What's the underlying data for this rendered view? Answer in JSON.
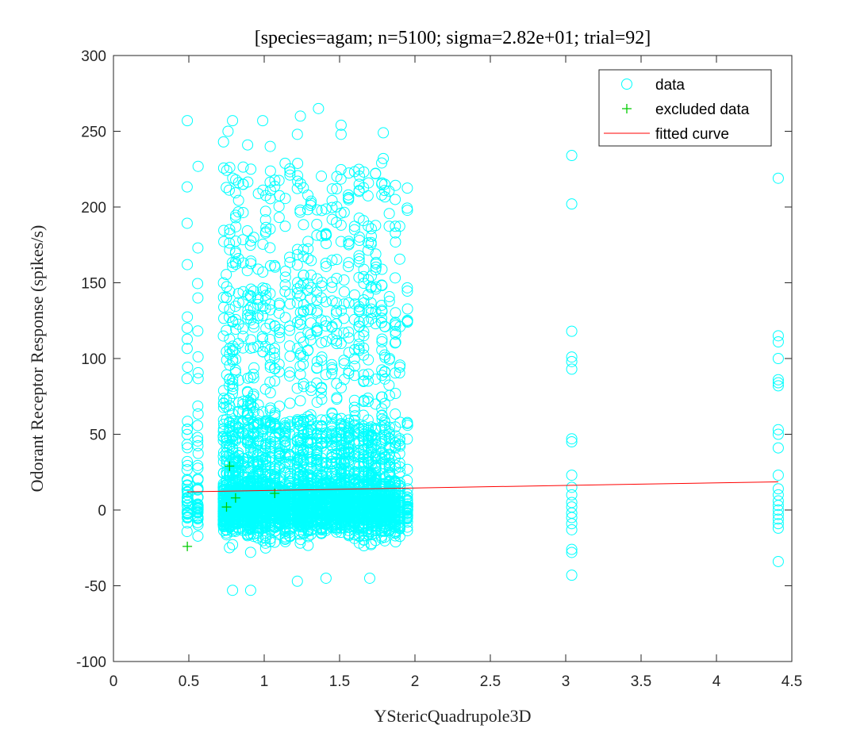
{
  "chart_data": {
    "type": "scatter",
    "title": "[species=agam; n=5100; sigma=2.82e+01; trial=92]",
    "xlabel": "YStericQuadrupole3D",
    "ylabel": "Odorant Receptor Response (spikes/s)",
    "xlim": [
      0,
      4.5
    ],
    "ylim": [
      -100,
      300
    ],
    "xticks": [
      0,
      0.5,
      1,
      1.5,
      2,
      2.5,
      3,
      3.5,
      4,
      4.5
    ],
    "xtick_labels": [
      "0",
      "0.5",
      "1",
      "1.5",
      "2",
      "2.5",
      "3",
      "3.5",
      "4",
      "4.5"
    ],
    "yticks": [
      -100,
      -50,
      0,
      50,
      100,
      150,
      200,
      250,
      300
    ],
    "ytick_labels": [
      "-100",
      "-50",
      "0",
      "50",
      "100",
      "150",
      "200",
      "250",
      "300"
    ],
    "grid": false,
    "legend_position": "top-right",
    "series": [
      {
        "name": "data",
        "marker": "circle",
        "color": "#00ffff",
        "x_clusters": [
          0.49,
          0.56,
          0.73,
          0.75,
          0.77,
          0.79,
          0.81,
          0.83,
          0.86,
          0.89,
          0.91,
          0.93,
          0.96,
          0.99,
          1.01,
          1.04,
          1.07,
          1.1,
          1.14,
          1.17,
          1.22,
          1.24,
          1.26,
          1.29,
          1.31,
          1.35,
          1.38,
          1.41,
          1.45,
          1.48,
          1.51,
          1.53,
          1.56,
          1.6,
          1.63,
          1.66,
          1.69,
          1.71,
          1.74,
          1.78,
          1.8,
          1.83,
          1.87,
          1.9,
          1.95,
          3.04,
          4.41
        ],
        "notable_points": [
          {
            "x": 0.49,
            "y": 257
          },
          {
            "x": 0.49,
            "y": 162
          },
          {
            "x": 0.56,
            "y": 173
          },
          {
            "x": 0.56,
            "y": 140
          },
          {
            "x": 0.73,
            "y": 243
          },
          {
            "x": 0.76,
            "y": 250
          },
          {
            "x": 0.79,
            "y": 257
          },
          {
            "x": 0.89,
            "y": 241
          },
          {
            "x": 0.99,
            "y": 257
          },
          {
            "x": 1.04,
            "y": 240
          },
          {
            "x": 1.22,
            "y": 248
          },
          {
            "x": 1.24,
            "y": 260
          },
          {
            "x": 1.36,
            "y": 265
          },
          {
            "x": 1.51,
            "y": 254
          },
          {
            "x": 1.51,
            "y": 248
          },
          {
            "x": 1.79,
            "y": 249
          },
          {
            "x": 1.79,
            "y": 232
          },
          {
            "x": 0.79,
            "y": -53
          },
          {
            "x": 0.91,
            "y": -53
          },
          {
            "x": 1.22,
            "y": -47
          },
          {
            "x": 1.41,
            "y": -45
          },
          {
            "x": 1.7,
            "y": -45
          },
          {
            "x": 3.04,
            "y": 234
          },
          {
            "x": 3.04,
            "y": 202
          },
          {
            "x": 3.04,
            "y": 118
          },
          {
            "x": 3.04,
            "y": 101
          },
          {
            "x": 3.04,
            "y": 98
          },
          {
            "x": 3.04,
            "y": 93
          },
          {
            "x": 3.04,
            "y": 47
          },
          {
            "x": 3.04,
            "y": 45
          },
          {
            "x": 3.04,
            "y": 23
          },
          {
            "x": 3.04,
            "y": 15
          },
          {
            "x": 3.04,
            "y": 10
          },
          {
            "x": 3.04,
            "y": 5
          },
          {
            "x": 3.04,
            "y": 2
          },
          {
            "x": 3.04,
            "y": -2
          },
          {
            "x": 3.04,
            "y": -5
          },
          {
            "x": 3.04,
            "y": -9
          },
          {
            "x": 3.04,
            "y": -13
          },
          {
            "x": 3.04,
            "y": -26
          },
          {
            "x": 3.04,
            "y": -28
          },
          {
            "x": 3.04,
            "y": -43
          },
          {
            "x": 4.41,
            "y": 219
          },
          {
            "x": 4.41,
            "y": 115
          },
          {
            "x": 4.41,
            "y": 111
          },
          {
            "x": 4.41,
            "y": 100
          },
          {
            "x": 4.41,
            "y": 86
          },
          {
            "x": 4.41,
            "y": 84
          },
          {
            "x": 4.41,
            "y": 82
          },
          {
            "x": 4.41,
            "y": 53
          },
          {
            "x": 4.41,
            "y": 50
          },
          {
            "x": 4.41,
            "y": 41
          },
          {
            "x": 4.41,
            "y": 23
          },
          {
            "x": 4.41,
            "y": 14
          },
          {
            "x": 4.41,
            "y": 10
          },
          {
            "x": 4.41,
            "y": 6
          },
          {
            "x": 4.41,
            "y": 3
          },
          {
            "x": 4.41,
            "y": 0
          },
          {
            "x": 4.41,
            "y": -3
          },
          {
            "x": 4.41,
            "y": -6
          },
          {
            "x": 4.41,
            "y": -9
          },
          {
            "x": 4.41,
            "y": -12
          },
          {
            "x": 4.41,
            "y": -34
          }
        ]
      },
      {
        "name": "excluded data",
        "marker": "plus",
        "color": "#00cc00",
        "points": [
          {
            "x": 0.49,
            "y": -24
          },
          {
            "x": 0.75,
            "y": 2
          },
          {
            "x": 0.77,
            "y": 29
          },
          {
            "x": 0.81,
            "y": 8
          },
          {
            "x": 1.07,
            "y": 11
          }
        ]
      },
      {
        "name": "fitted curve",
        "marker": "line",
        "color": "#ff0000",
        "points": [
          {
            "x": 0.49,
            "y": 12
          },
          {
            "x": 4.41,
            "y": 18.6
          }
        ]
      }
    ]
  }
}
